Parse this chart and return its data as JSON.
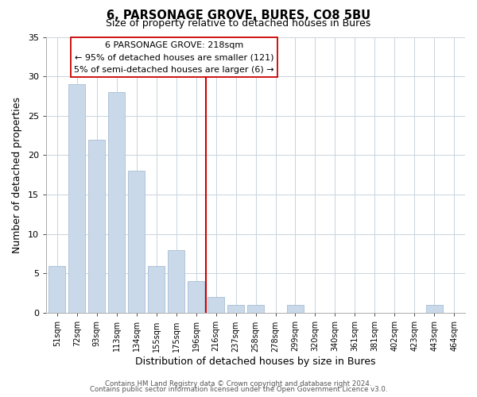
{
  "title_line1": "6, PARSONAGE GROVE, BURES, CO8 5BU",
  "title_line2": "Size of property relative to detached houses in Bures",
  "xlabel": "Distribution of detached houses by size in Bures",
  "ylabel": "Number of detached properties",
  "bar_labels": [
    "51sqm",
    "72sqm",
    "93sqm",
    "113sqm",
    "134sqm",
    "155sqm",
    "175sqm",
    "196sqm",
    "216sqm",
    "237sqm",
    "258sqm",
    "278sqm",
    "299sqm",
    "320sqm",
    "340sqm",
    "361sqm",
    "381sqm",
    "402sqm",
    "423sqm",
    "443sqm",
    "464sqm"
  ],
  "bar_values": [
    6,
    29,
    22,
    28,
    18,
    6,
    8,
    4,
    2,
    1,
    1,
    0,
    1,
    0,
    0,
    0,
    0,
    0,
    0,
    1,
    0
  ],
  "bar_color": "#c9d9ea",
  "bar_edge_color": "#b0c4d8",
  "highlight_line_color": "#cc0000",
  "highlight_bar_index": 8,
  "ylim": [
    0,
    35
  ],
  "yticks": [
    0,
    5,
    10,
    15,
    20,
    25,
    30,
    35
  ],
  "annotation_title": "6 PARSONAGE GROVE: 218sqm",
  "annotation_line1": "← 95% of detached houses are smaller (121)",
  "annotation_line2": "5% of semi-detached houses are larger (6) →",
  "footer_line1": "Contains HM Land Registry data © Crown copyright and database right 2024.",
  "footer_line2": "Contains public sector information licensed under the Open Government Licence v3.0.",
  "background_color": "#ffffff",
  "grid_color": "#c8d4dc"
}
